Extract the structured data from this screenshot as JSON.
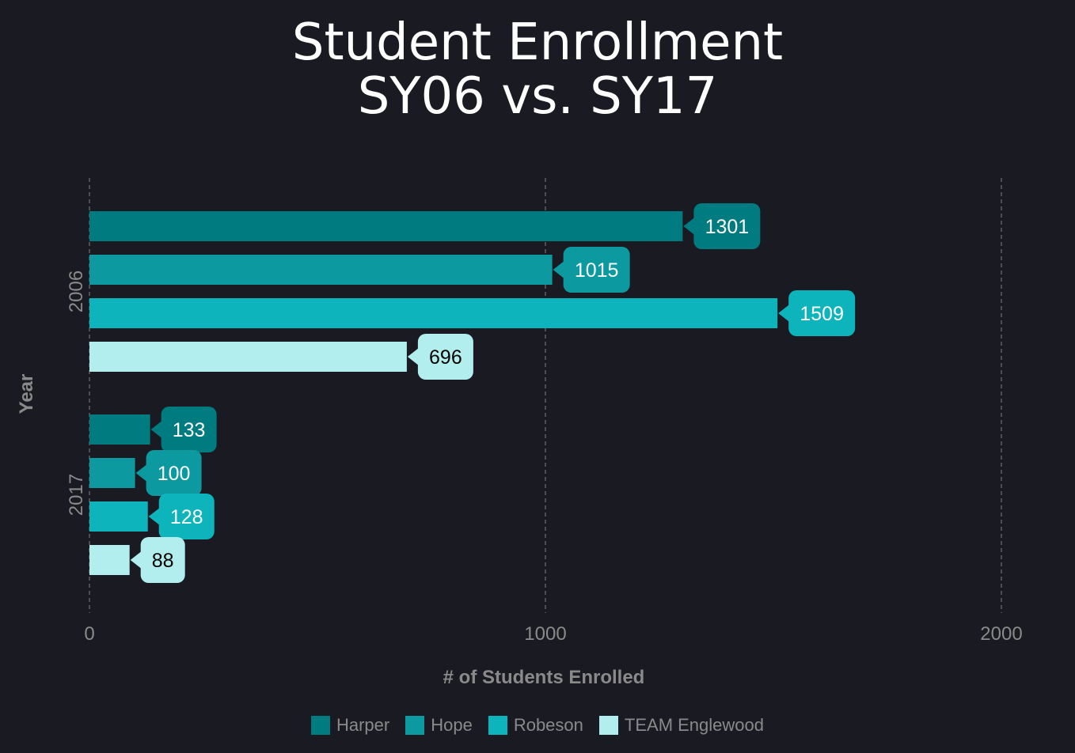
{
  "title": {
    "line1": "Student Enrollment",
    "line2": "SY06 vs. SY17"
  },
  "chart_data": {
    "type": "bar",
    "orientation": "horizontal",
    "categories": [
      "2006",
      "2017"
    ],
    "series": [
      {
        "name": "Harper",
        "values": [
          1301,
          133
        ],
        "color": "#007c80"
      },
      {
        "name": "Hope",
        "values": [
          1015,
          100
        ],
        "color": "#0c9aa0"
      },
      {
        "name": "Robeson",
        "values": [
          1509,
          128
        ],
        "color": "#0eb4bc"
      },
      {
        "name": "TEAM Englewood",
        "values": [
          696,
          88
        ],
        "color": "#b2eeee"
      }
    ],
    "xlabel": "# of Students Enrolled",
    "ylabel": "Year",
    "xlim": [
      0,
      2000
    ],
    "xticks": [
      "0",
      "1000",
      "2000"
    ],
    "grid": true,
    "data_labels": true,
    "legend_position": "bottom"
  },
  "colors": {
    "background": "#1a1a23",
    "axis_text": "#8a8a8a",
    "grid": "#6a6a6a",
    "label_dark_text": "#000000",
    "label_light_text": "#ffffff"
  }
}
